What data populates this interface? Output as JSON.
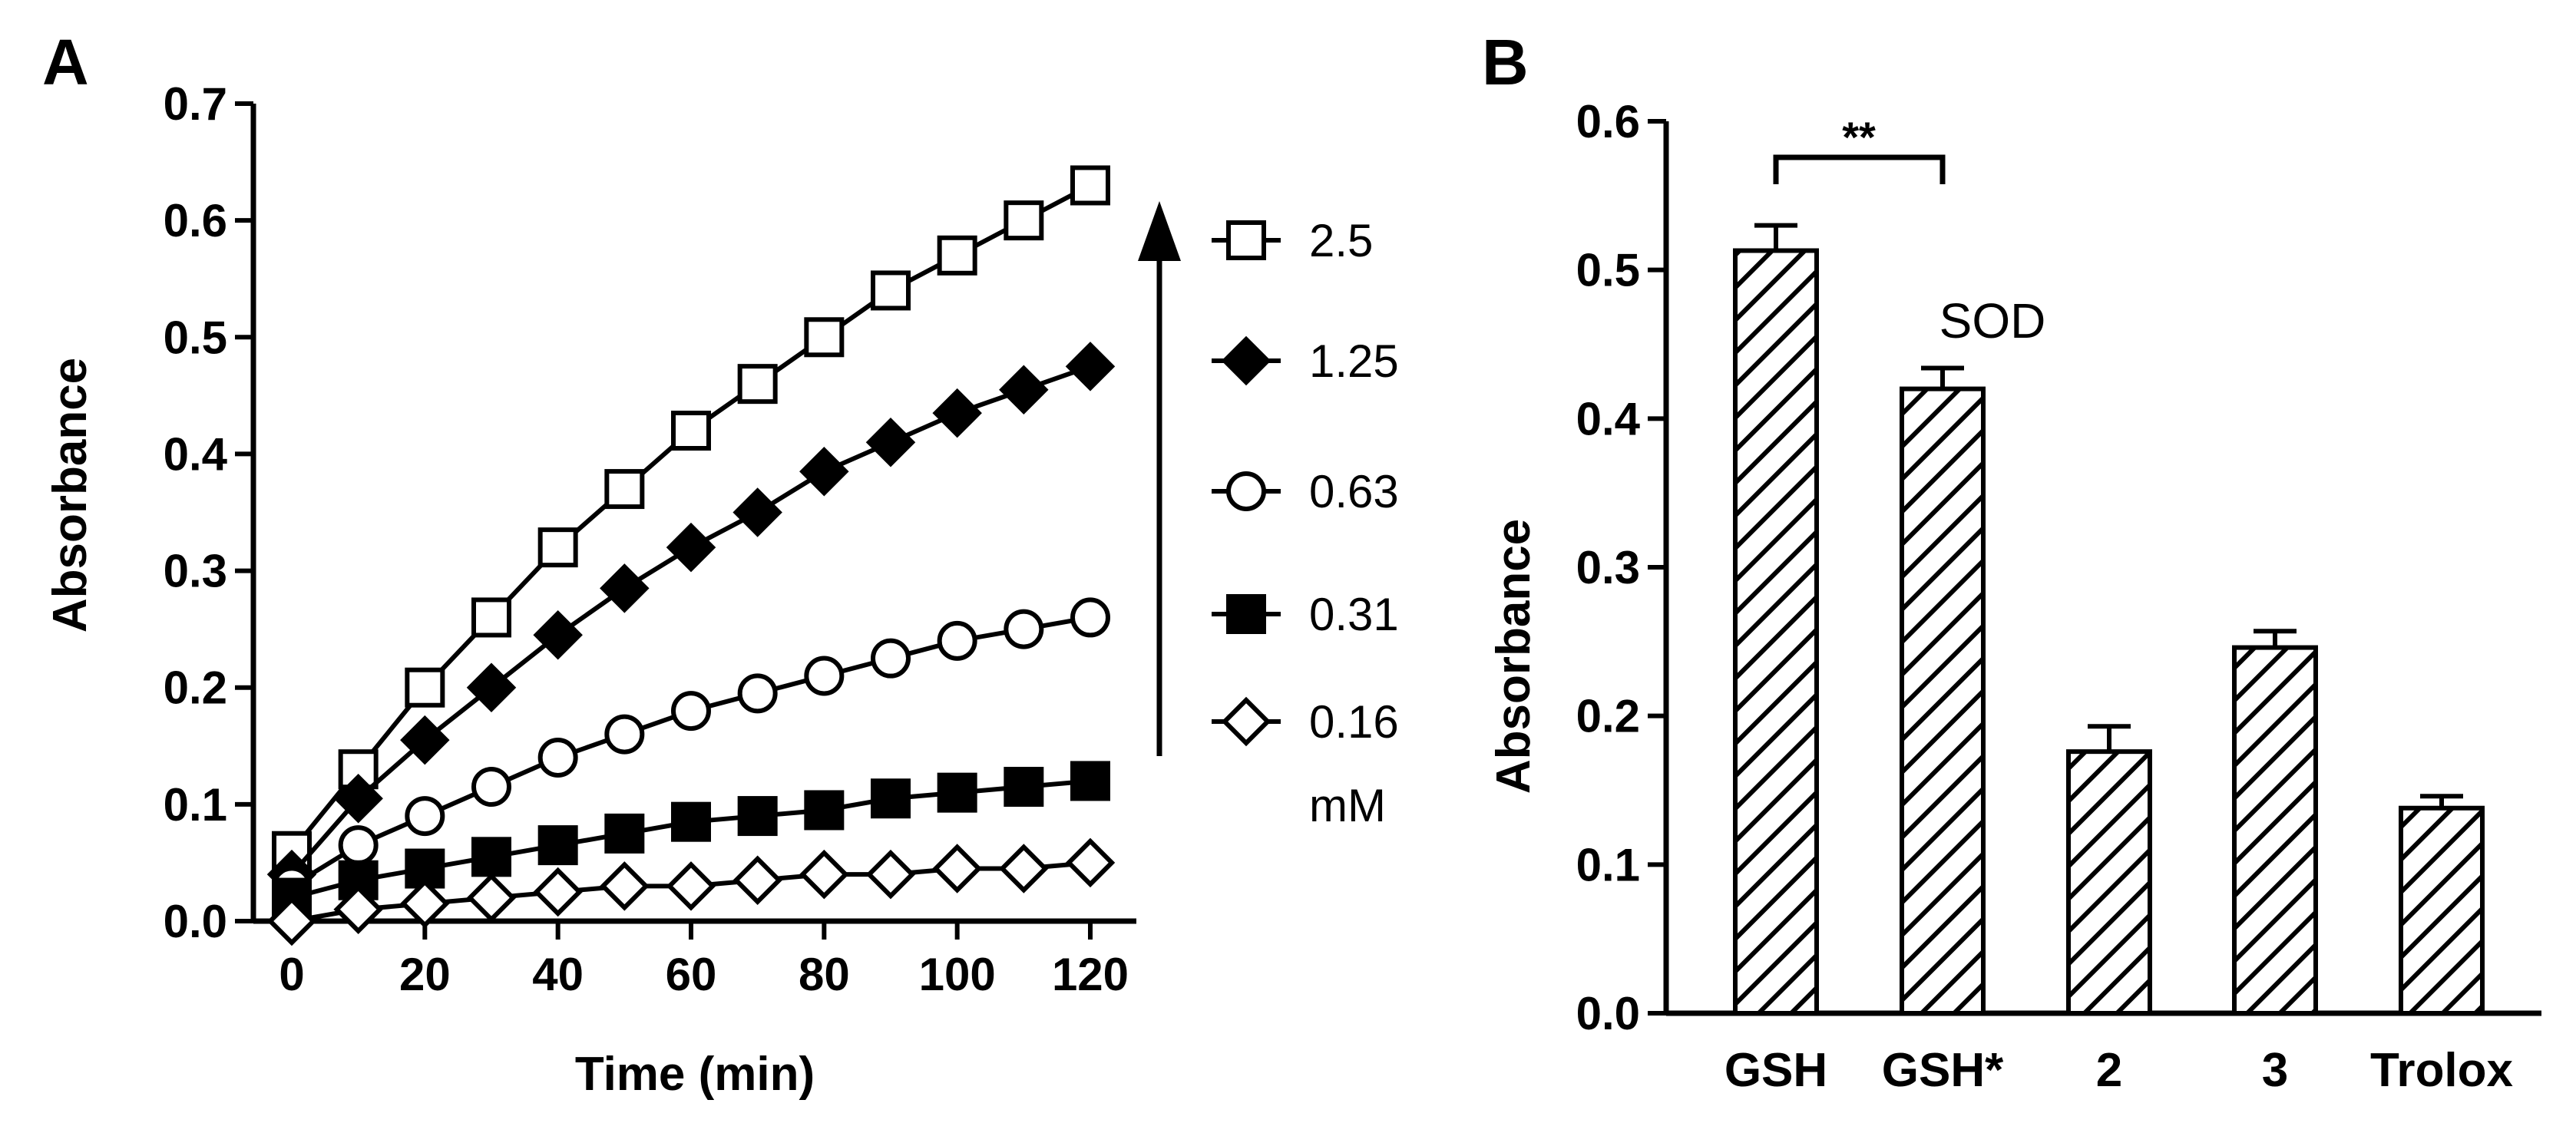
{
  "panels": {
    "a": "A",
    "b": "B"
  },
  "chart_data": [
    {
      "type": "line",
      "title": "",
      "xlabel": "Time (min)",
      "ylabel": "Absorbance",
      "xlim": [
        0,
        120
      ],
      "ylim": [
        0,
        0.7
      ],
      "xticks": [
        "0",
        "20",
        "40",
        "60",
        "80",
        "100",
        "120"
      ],
      "yticks": [
        "0.0",
        "0.1",
        "0.2",
        "0.3",
        "0.4",
        "0.5",
        "0.6",
        "0.7"
      ],
      "x": [
        0,
        10,
        20,
        30,
        40,
        50,
        60,
        70,
        80,
        90,
        100,
        110,
        120
      ],
      "legend_unit": "mM",
      "arrow": "increasing concentration",
      "series": [
        {
          "name": "2.5",
          "marker": "open-square",
          "values": [
            0.06,
            0.13,
            0.2,
            0.26,
            0.32,
            0.37,
            0.42,
            0.46,
            0.5,
            0.54,
            0.57,
            0.6,
            0.63
          ]
        },
        {
          "name": "1.25",
          "marker": "filled-diamond",
          "values": [
            0.04,
            0.105,
            0.155,
            0.2,
            0.245,
            0.285,
            0.32,
            0.35,
            0.385,
            0.41,
            0.435,
            0.455,
            0.475
          ]
        },
        {
          "name": "0.63",
          "marker": "open-circle",
          "values": [
            0.03,
            0.065,
            0.09,
            0.115,
            0.14,
            0.16,
            0.18,
            0.195,
            0.21,
            0.225,
            0.24,
            0.25,
            0.26
          ]
        },
        {
          "name": "0.31",
          "marker": "filled-square",
          "values": [
            0.02,
            0.035,
            0.045,
            0.055,
            0.065,
            0.075,
            0.085,
            0.09,
            0.095,
            0.105,
            0.11,
            0.115,
            0.12
          ]
        },
        {
          "name": "0.16",
          "marker": "open-diamond",
          "values": [
            0.0,
            0.01,
            0.015,
            0.02,
            0.025,
            0.03,
            0.03,
            0.035,
            0.04,
            0.04,
            0.045,
            0.045,
            0.05
          ]
        }
      ]
    },
    {
      "type": "bar",
      "title": "",
      "xlabel": "",
      "ylabel": "Absorbance",
      "ylim": [
        0,
        0.6
      ],
      "yticks": [
        "0.0",
        "0.1",
        "0.2",
        "0.3",
        "0.4",
        "0.5",
        "0.6"
      ],
      "categories": [
        "GSH",
        "GSH*",
        "2",
        "3",
        "Trolox"
      ],
      "values": [
        0.513,
        0.42,
        0.176,
        0.246,
        0.138
      ],
      "errors": [
        0.017,
        0.014,
        0.017,
        0.011,
        0.008
      ],
      "annotations": {
        "sod_label": "SOD",
        "significance": "**"
      }
    }
  ]
}
